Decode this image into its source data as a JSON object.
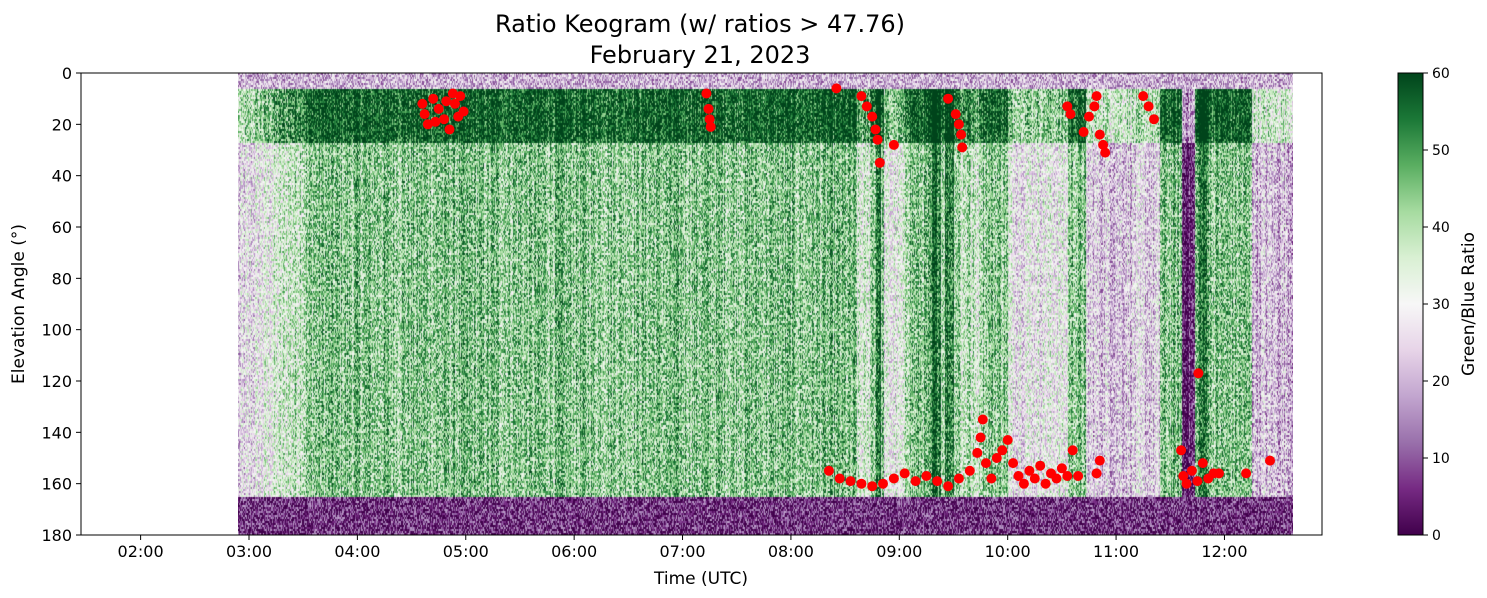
{
  "chart_data": {
    "type": "heatmap",
    "title": "Ratio Keogram (w/ ratios > 47.76)",
    "subtitle": "February 21, 2023",
    "xlabel": "Time (UTC)",
    "ylabel": "Elevation Angle (°)",
    "colorbar_label": "Green/Blue Ratio",
    "threshold": 47.76,
    "x_ticks": [
      "02:00",
      "03:00",
      "04:00",
      "05:00",
      "06:00",
      "07:00",
      "08:00",
      "09:00",
      "10:00",
      "11:00",
      "12:00"
    ],
    "x_tick_hours": [
      2,
      3,
      4,
      5,
      6,
      7,
      8,
      9,
      10,
      11,
      12
    ],
    "xlim_hours": [
      1.45,
      12.9
    ],
    "data_range_hours": [
      2.9,
      12.63
    ],
    "y_ticks": [
      0,
      20,
      40,
      60,
      80,
      100,
      120,
      140,
      160,
      180
    ],
    "ylim": [
      180,
      0
    ],
    "y_inverted": true,
    "colorbar_ticks": [
      0,
      10,
      20,
      30,
      40,
      50,
      60
    ],
    "clim": [
      0,
      60
    ],
    "colormap": "PRGn",
    "colormap_stops": [
      "#40004b",
      "#762a83",
      "#9970ab",
      "#c2a5cf",
      "#e7d4e8",
      "#f7f7f7",
      "#d9f0d3",
      "#a6dba0",
      "#5aae61",
      "#1b7837",
      "#00441b"
    ],
    "marker_color": "#ff0000",
    "marker_series_label": "ratios > 47.76",
    "high_ratio_points": [
      [
        4.6,
        12
      ],
      [
        4.62,
        16
      ],
      [
        4.65,
        20
      ],
      [
        4.7,
        10
      ],
      [
        4.75,
        14
      ],
      [
        4.8,
        18
      ],
      [
        4.85,
        22
      ],
      [
        4.9,
        12
      ],
      [
        4.95,
        9
      ],
      [
        4.98,
        15
      ],
      [
        4.72,
        19
      ],
      [
        4.88,
        8
      ],
      [
        4.82,
        11
      ],
      [
        4.93,
        17
      ],
      [
        7.22,
        8
      ],
      [
        7.24,
        14
      ],
      [
        7.25,
        18
      ],
      [
        7.26,
        21
      ],
      [
        8.42,
        6
      ],
      [
        8.65,
        9
      ],
      [
        8.7,
        13
      ],
      [
        8.75,
        17
      ],
      [
        8.78,
        22
      ],
      [
        8.8,
        26
      ],
      [
        8.82,
        35
      ],
      [
        8.95,
        28
      ],
      [
        9.45,
        10
      ],
      [
        9.52,
        16
      ],
      [
        9.55,
        20
      ],
      [
        9.57,
        24
      ],
      [
        9.58,
        29
      ],
      [
        10.55,
        13
      ],
      [
        10.58,
        16
      ],
      [
        10.7,
        23
      ],
      [
        10.75,
        17
      ],
      [
        10.8,
        13
      ],
      [
        10.82,
        9
      ],
      [
        10.85,
        24
      ],
      [
        10.88,
        28
      ],
      [
        10.9,
        31
      ],
      [
        11.25,
        9
      ],
      [
        11.3,
        13
      ],
      [
        11.35,
        18
      ],
      [
        11.76,
        117
      ],
      [
        8.35,
        155
      ],
      [
        8.45,
        158
      ],
      [
        8.55,
        159
      ],
      [
        8.65,
        160
      ],
      [
        8.75,
        161
      ],
      [
        8.85,
        160
      ],
      [
        8.95,
        158
      ],
      [
        9.05,
        156
      ],
      [
        9.15,
        159
      ],
      [
        9.25,
        157
      ],
      [
        9.35,
        159
      ],
      [
        9.45,
        161
      ],
      [
        9.55,
        158
      ],
      [
        9.65,
        155
      ],
      [
        9.72,
        148
      ],
      [
        9.75,
        142
      ],
      [
        9.77,
        135
      ],
      [
        9.8,
        152
      ],
      [
        9.85,
        158
      ],
      [
        9.9,
        150
      ],
      [
        9.95,
        147
      ],
      [
        10.0,
        143
      ],
      [
        10.05,
        152
      ],
      [
        10.1,
        157
      ],
      [
        10.15,
        160
      ],
      [
        10.2,
        155
      ],
      [
        10.25,
        158
      ],
      [
        10.3,
        153
      ],
      [
        10.35,
        160
      ],
      [
        10.4,
        156
      ],
      [
        10.45,
        158
      ],
      [
        10.5,
        154
      ],
      [
        10.55,
        157
      ],
      [
        10.6,
        147
      ],
      [
        10.65,
        157
      ],
      [
        10.82,
        156
      ],
      [
        10.85,
        151
      ],
      [
        11.6,
        147
      ],
      [
        11.62,
        157
      ],
      [
        11.65,
        160
      ],
      [
        11.7,
        155
      ],
      [
        11.75,
        159
      ],
      [
        11.8,
        152
      ],
      [
        11.85,
        158
      ],
      [
        11.9,
        156
      ],
      [
        11.95,
        156
      ],
      [
        12.2,
        156
      ],
      [
        12.42,
        151
      ]
    ]
  }
}
